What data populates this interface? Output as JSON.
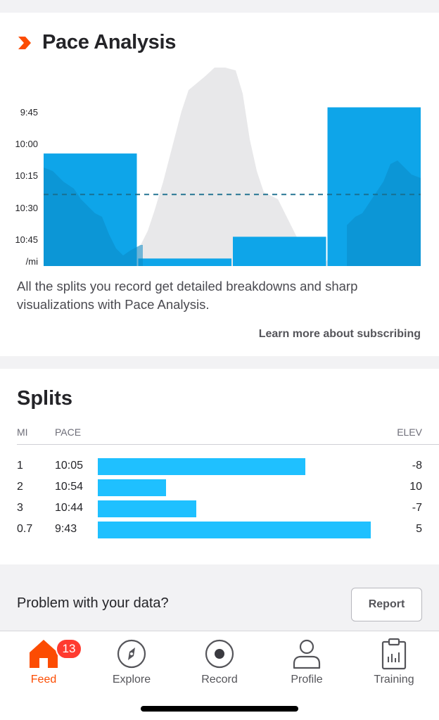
{
  "pace_analysis": {
    "title": "Pace Analysis",
    "y_labels": [
      "9:45",
      "10:00",
      "10:15",
      "10:30",
      "10:45",
      "/mi"
    ],
    "description": "All the splits you record get detailed breakdowns and sharp visualizations with Pace Analysis.",
    "learn_more": "Learn more about subscribing"
  },
  "chart_data": {
    "type": "bar",
    "categories": [
      "1",
      "2",
      "3",
      "0.7"
    ],
    "values": [
      10.08,
      10.9,
      10.73,
      9.72
    ],
    "average_pace": 10.4,
    "ylim": [
      9.5,
      11.0
    ],
    "y_tick_labels": [
      "9:45",
      "10:00",
      "10:15",
      "10:30",
      "10:45"
    ],
    "ylabel": "/mi",
    "colors": {
      "bars": "#0ea5e9",
      "average_line": "#1a6e8e",
      "elevation": "#e8e8ea"
    }
  },
  "splits": {
    "title": "Splits",
    "headers": {
      "mi": "MI",
      "pace": "PACE",
      "elev": "ELEV"
    },
    "rows": [
      {
        "mi": "1",
        "pace": "10:05",
        "elev": "-8",
        "bar_fraction": 0.76
      },
      {
        "mi": "2",
        "pace": "10:54",
        "elev": "10",
        "bar_fraction": 0.25
      },
      {
        "mi": "3",
        "pace": "10:44",
        "elev": "-7",
        "bar_fraction": 0.36
      },
      {
        "mi": "0.7",
        "pace": "9:43",
        "elev": "5",
        "bar_fraction": 1.0
      }
    ]
  },
  "problem": {
    "text": "Problem with your data?",
    "button": "Report"
  },
  "tabbar": {
    "tabs": [
      {
        "label": "Feed",
        "icon": "home-icon",
        "active": true,
        "badge": "13"
      },
      {
        "label": "Explore",
        "icon": "compass-icon"
      },
      {
        "label": "Record",
        "icon": "record-icon"
      },
      {
        "label": "Profile",
        "icon": "person-icon"
      },
      {
        "label": "Training",
        "icon": "clipboard-chart-icon"
      }
    ]
  },
  "colors": {
    "accent": "#fc4c02",
    "split_bar": "#1fc0ff",
    "badge": "#ff3b30"
  }
}
